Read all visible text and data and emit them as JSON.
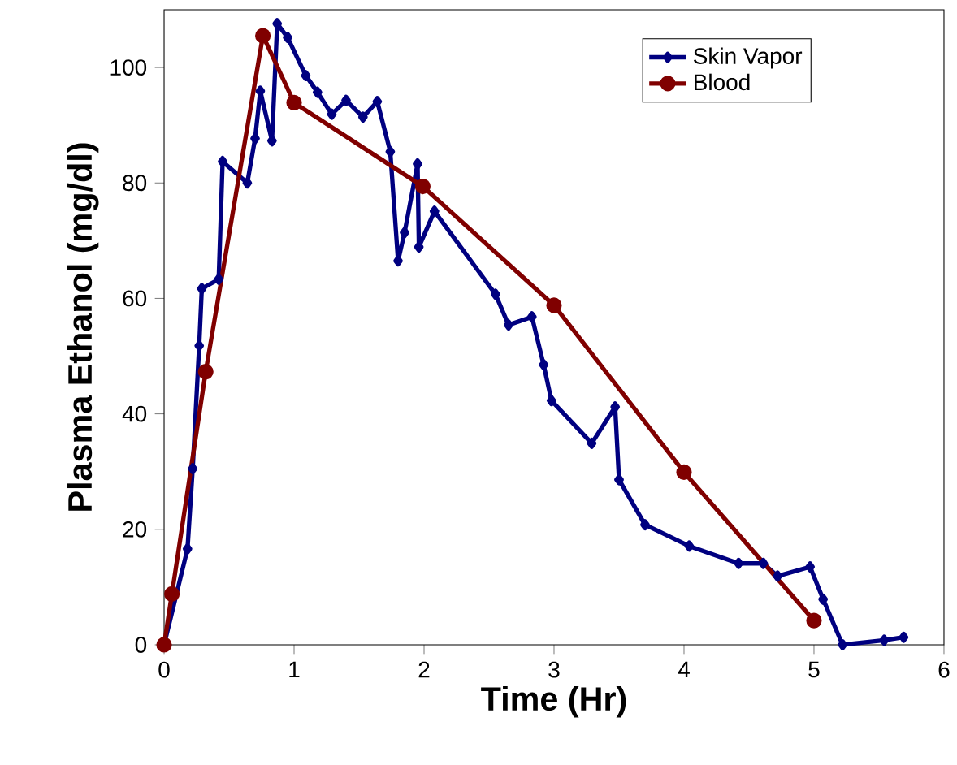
{
  "chart_data": {
    "type": "line",
    "xlabel": "Time (Hr)",
    "ylabel": "Plasma Ethanol (mg/dl)",
    "xlim": [
      0,
      6
    ],
    "xticks": [
      0,
      1,
      2,
      3,
      4,
      5,
      6
    ],
    "ylim": [
      0,
      110
    ],
    "yticks": [
      0,
      20,
      40,
      60,
      80,
      100
    ],
    "legend": "top right",
    "grid": false,
    "line_style": "solid",
    "series": [
      {
        "name": "Skin Vapor",
        "color": "#000080",
        "marker": "diamond",
        "x": [
          0,
          0.18,
          0.22,
          0.27,
          0.29,
          0.42,
          0.45,
          0.64,
          0.7,
          0.74,
          0.83,
          0.87,
          0.95,
          1.09,
          1.18,
          1.29,
          1.4,
          1.53,
          1.64,
          1.74,
          1.8,
          1.85,
          1.95,
          1.96,
          2.08,
          2.55,
          2.65,
          2.83,
          2.92,
          2.98,
          3.29,
          3.47,
          3.5,
          3.7,
          4.04,
          4.42,
          4.61,
          4.72,
          4.97,
          5.07,
          5.22,
          5.54,
          5.69
        ],
        "values": [
          0,
          16.6,
          30.5,
          51.8,
          61.7,
          63.3,
          83.7,
          80.0,
          87.7,
          95.9,
          87.3,
          107.6,
          105.2,
          98.6,
          95.7,
          91.9,
          94.3,
          91.4,
          94.1,
          85.4,
          66.5,
          71.4,
          83.3,
          68.9,
          75.1,
          60.7,
          55.4,
          56.8,
          48.5,
          42.3,
          34.9,
          41.2,
          28.6,
          20.8,
          17.1,
          14.1,
          14.1,
          11.9,
          13.5,
          7.9,
          0,
          0.8,
          1.3
        ]
      },
      {
        "name": "Blood",
        "color": "#800000",
        "marker": "circle",
        "x": [
          0,
          0.06,
          0.32,
          0.76,
          1.0,
          1.99,
          3.0,
          4.0,
          5.0
        ],
        "values": [
          0,
          8.8,
          47.3,
          105.5,
          93.9,
          79.4,
          58.8,
          29.9,
          4.2
        ]
      }
    ]
  }
}
